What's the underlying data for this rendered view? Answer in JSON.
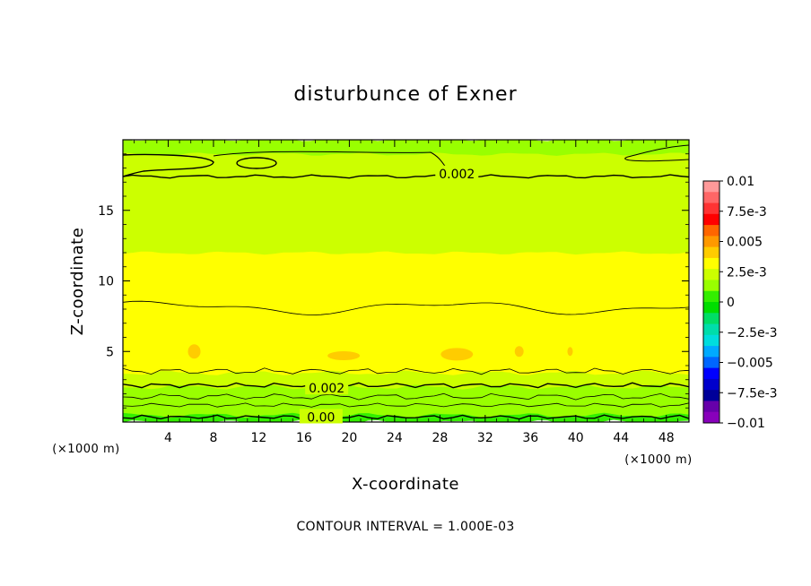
{
  "chart_data": {
    "type": "heatmap",
    "title": "disturbunce of Exner",
    "xlabel": "X-coordinate",
    "ylabel": "Z-coordinate",
    "x_unit": "(×1000 m)",
    "x_unit_right": "(×1000 m)",
    "footnote": "CONTOUR INTERVAL = 1.000E-03",
    "xlim": [
      0,
      50
    ],
    "ylim": [
      0,
      20
    ],
    "x_ticks": [
      4,
      8,
      12,
      16,
      20,
      24,
      28,
      32,
      36,
      40,
      44,
      48
    ],
    "x_tick_labels": [
      "4",
      "8",
      "12",
      "16",
      "20",
      "24",
      "28",
      "32",
      "36",
      "40",
      "44",
      "48"
    ],
    "y_ticks": [
      5,
      10,
      15
    ],
    "y_tick_labels": [
      "5",
      "10",
      "15"
    ],
    "colorbar": {
      "min": -0.01,
      "max": 0.01,
      "labels": [
        "0.01",
        "7.5e-3",
        "0.005",
        "2.5e-3",
        "0",
        "−2.5e-3",
        "−0.005",
        "−7.5e-3",
        "−0.01"
      ],
      "label_values": [
        0.01,
        0.0075,
        0.005,
        0.0025,
        0,
        -0.0025,
        -0.005,
        -0.0075,
        -0.01
      ],
      "colors": [
        "#ff9999",
        "#ff6666",
        "#ff3333",
        "#ff0000",
        "#ff6600",
        "#ff9900",
        "#ffcc00",
        "#ffff00",
        "#ccff00",
        "#99ff00",
        "#33ee00",
        "#00dd00",
        "#00dd66",
        "#00ddaa",
        "#00dddd",
        "#00aaff",
        "#0066ff",
        "#0000ff",
        "#0000cc",
        "#000099",
        "#6600aa",
        "#8800bb"
      ]
    },
    "contour_interval": 0.001,
    "contour_labels": [
      {
        "text": "0.002",
        "x": 29.5,
        "z": 17.6
      },
      {
        "text": "0.002",
        "x": 18,
        "z": 2.4
      },
      {
        "text": "0.00",
        "x": 17.5,
        "z": 0.35
      }
    ],
    "field_bands": [
      {
        "z": [
          0,
          0.5
        ],
        "value": 0.0006
      },
      {
        "z": [
          0.5,
          1.5
        ],
        "value": 0.0012
      },
      {
        "z": [
          1.5,
          2.5
        ],
        "value": 0.0017
      },
      {
        "z": [
          2.5,
          3.5
        ],
        "value": 0.0023
      },
      {
        "z": [
          3.5,
          8
        ],
        "value": 0.0034
      },
      {
        "z": [
          8,
          12
        ],
        "value": 0.0031
      },
      {
        "z": [
          12,
          17.5
        ],
        "value": 0.0026
      },
      {
        "z": [
          17.5,
          19
        ],
        "value": 0.0019
      },
      {
        "z": [
          19,
          20
        ],
        "value": 0.0012
      }
    ],
    "contour_levels": [
      0.001,
      0.002,
      0.003
    ],
    "grid": false,
    "legend": "colorbar-right"
  }
}
